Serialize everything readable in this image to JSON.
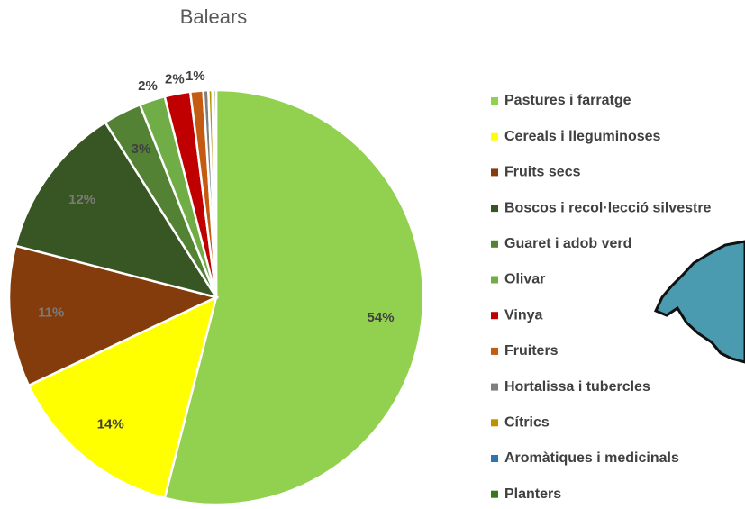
{
  "chart_data": {
    "type": "pie",
    "title": "Balears",
    "categories": [
      "Pastures i farratge",
      "Cereals i lleguminoses",
      "Fruits secs",
      "Boscos i recol·lecció silvestre",
      "Guaret i adob verd",
      "Olivar",
      "Vinya",
      "Fruiters",
      "Hortalissa i tubercles",
      "Cítrics",
      "Aromàtiques i medicinals",
      "Planters"
    ],
    "values": [
      54,
      14,
      11,
      12,
      3,
      2,
      2,
      1,
      0.4,
      0.3,
      0.1,
      0.2
    ],
    "value_labels": [
      "54%",
      "14%",
      "11%",
      "12%",
      "3%",
      "2%",
      "2%",
      "1%",
      null,
      null,
      null,
      null
    ],
    "colors": [
      "#92d050",
      "#ffff00",
      "#843c0c",
      "#375623",
      "#548235",
      "#70ad47",
      "#c00000",
      "#c55a11",
      "#7f7f7f",
      "#bf9000",
      "#2e75b6",
      "#38761d"
    ]
  }
}
